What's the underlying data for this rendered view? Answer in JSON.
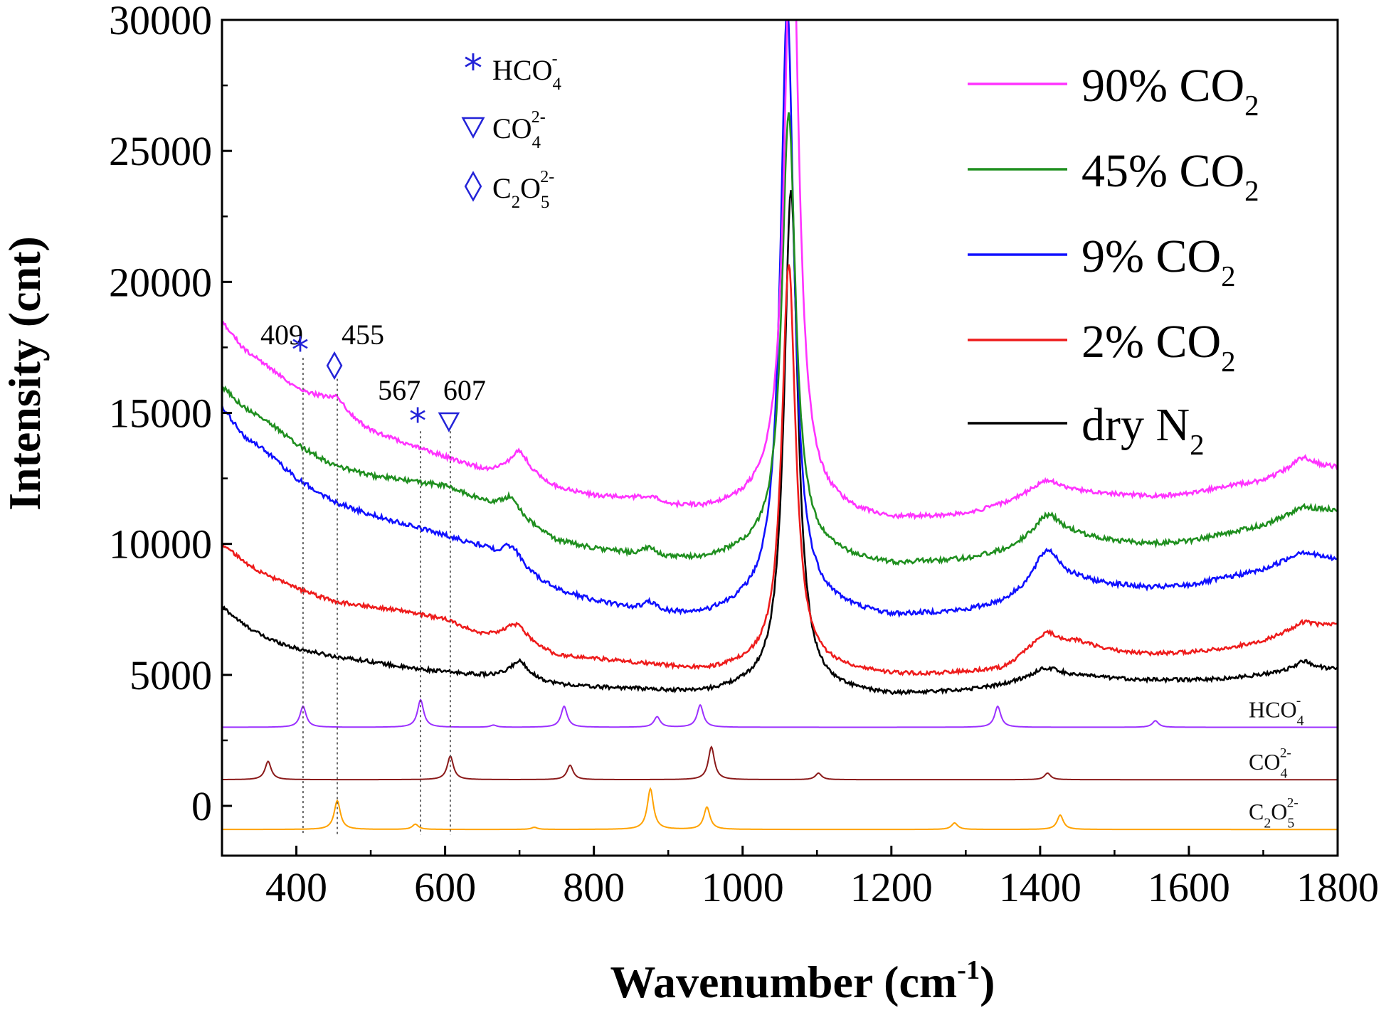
{
  "chart_data": {
    "type": "line",
    "xlabel": {
      "main": "Wavenumber (cm",
      "sup": "-1",
      "tail": ")"
    },
    "ylabel": "Intensity (cnt)",
    "xlim": [
      300,
      1800
    ],
    "ylim": [
      -1900,
      30000
    ],
    "xticks": [
      400,
      600,
      800,
      1000,
      1200,
      1400,
      1600,
      1800
    ],
    "yticks": [
      0,
      5000,
      10000,
      15000,
      20000,
      25000,
      30000
    ],
    "legend": [
      {
        "series": "90% CO2",
        "text": "90% CO",
        "sub": "2",
        "color": "#ff33ff"
      },
      {
        "series": "45% CO2",
        "text": "45% CO",
        "sub": "2",
        "color": "#1f8f1f"
      },
      {
        "series": "9% CO2",
        "text": "9% CO",
        "sub": "2",
        "color": "#1010ff"
      },
      {
        "series": "2% CO2",
        "text": "2% CO",
        "sub": "2",
        "color": "#ee1c1c"
      },
      {
        "series": "dry N2",
        "text": "dry N",
        "sub": "2",
        "color": "#000000"
      }
    ],
    "marker_legend": [
      {
        "symbol": "*",
        "shape": "asterisk",
        "text": "HCO",
        "sub": "4",
        "sup": "-"
      },
      {
        "symbol": "▽",
        "shape": "triangle",
        "text": "CO",
        "sub": "4",
        "sup": "2-"
      },
      {
        "symbol": "◊",
        "shape": "diamond",
        "text": "C",
        "sub2a": "2",
        "mid": "O",
        "sub": "5",
        "sup": "2-"
      }
    ],
    "marker_color": "#2323d8",
    "peak_annotations": [
      {
        "label": "409",
        "x": 409,
        "shape": "asterisk"
      },
      {
        "label": "455",
        "x": 455,
        "shape": "diamond"
      },
      {
        "label": "567",
        "x": 567,
        "shape": "asterisk"
      },
      {
        "label": "607",
        "x": 607,
        "shape": "triangle"
      }
    ],
    "series": [
      {
        "name": "dry N2",
        "color": "#000000",
        "baseline": [
          [
            300,
            7600
          ],
          [
            330,
            6900
          ],
          [
            360,
            6400
          ],
          [
            400,
            6000
          ],
          [
            450,
            5700
          ],
          [
            500,
            5500
          ],
          [
            550,
            5250
          ],
          [
            600,
            5100
          ],
          [
            650,
            4950
          ],
          [
            700,
            4800
          ],
          [
            750,
            4600
          ],
          [
            800,
            4500
          ],
          [
            850,
            4450
          ],
          [
            900,
            4350
          ],
          [
            950,
            4300
          ],
          [
            1000,
            4450
          ],
          [
            1050,
            4550
          ],
          [
            1100,
            4400
          ],
          [
            1150,
            4300
          ],
          [
            1200,
            4200
          ],
          [
            1250,
            4300
          ],
          [
            1300,
            4400
          ],
          [
            1350,
            4600
          ],
          [
            1400,
            4950
          ],
          [
            1450,
            4950
          ],
          [
            1500,
            4850
          ],
          [
            1550,
            4800
          ],
          [
            1600,
            4800
          ],
          [
            1650,
            4850
          ],
          [
            1700,
            5000
          ],
          [
            1750,
            5200
          ],
          [
            1800,
            5200
          ]
        ],
        "peaks": [
          {
            "x": 1065,
            "h": 19000,
            "w": 11
          },
          {
            "x": 700,
            "h": 700,
            "w": 16
          },
          {
            "x": 1410,
            "h": 300,
            "w": 20
          },
          {
            "x": 1755,
            "h": 300,
            "w": 16
          }
        ],
        "noise": 70
      },
      {
        "name": "2% CO2",
        "color": "#ee1c1c",
        "baseline": [
          [
            300,
            10000
          ],
          [
            330,
            9300
          ],
          [
            360,
            8800
          ],
          [
            400,
            8300
          ],
          [
            450,
            7800
          ],
          [
            500,
            7600
          ],
          [
            550,
            7400
          ],
          [
            600,
            7100
          ],
          [
            650,
            6500
          ],
          [
            700,
            6300
          ],
          [
            750,
            5700
          ],
          [
            800,
            5600
          ],
          [
            850,
            5450
          ],
          [
            900,
            5300
          ],
          [
            950,
            5150
          ],
          [
            1000,
            5300
          ],
          [
            1050,
            5450
          ],
          [
            1100,
            5300
          ],
          [
            1150,
            5150
          ],
          [
            1200,
            5000
          ],
          [
            1250,
            5000
          ],
          [
            1300,
            5100
          ],
          [
            1350,
            5200
          ],
          [
            1380,
            5700
          ],
          [
            1450,
            6200
          ],
          [
            1500,
            5900
          ],
          [
            1550,
            5800
          ],
          [
            1600,
            5850
          ],
          [
            1650,
            6000
          ],
          [
            1700,
            6300
          ],
          [
            1750,
            6800
          ],
          [
            1800,
            6900
          ]
        ],
        "peaks": [
          {
            "x": 1062,
            "h": 15300,
            "w": 11
          },
          {
            "x": 695,
            "h": 600,
            "w": 18
          },
          {
            "x": 1408,
            "h": 700,
            "w": 20
          },
          {
            "x": 1755,
            "h": 200,
            "w": 16
          }
        ],
        "noise": 70
      },
      {
        "name": "9% CO2",
        "color": "#1010ff",
        "baseline": [
          [
            300,
            15200
          ],
          [
            330,
            14100
          ],
          [
            360,
            13500
          ],
          [
            400,
            12500
          ],
          [
            450,
            11600
          ],
          [
            500,
            11100
          ],
          [
            550,
            10700
          ],
          [
            600,
            10300
          ],
          [
            650,
            9800
          ],
          [
            700,
            8900
          ],
          [
            750,
            8200
          ],
          [
            800,
            7800
          ],
          [
            850,
            7500
          ],
          [
            900,
            7300
          ],
          [
            950,
            7250
          ],
          [
            1000,
            7600
          ],
          [
            1050,
            7900
          ],
          [
            1100,
            7700
          ],
          [
            1150,
            7400
          ],
          [
            1200,
            7200
          ],
          [
            1250,
            7300
          ],
          [
            1300,
            7400
          ],
          [
            1350,
            7700
          ],
          [
            1400,
            8300
          ],
          [
            1450,
            8500
          ],
          [
            1500,
            8400
          ],
          [
            1550,
            8300
          ],
          [
            1600,
            8400
          ],
          [
            1650,
            8700
          ],
          [
            1700,
            9000
          ],
          [
            1750,
            9600
          ],
          [
            1800,
            9400
          ]
        ],
        "peaks": [
          {
            "x": 1060,
            "h": 22600,
            "w": 11
          },
          {
            "x": 690,
            "h": 800,
            "w": 18
          },
          {
            "x": 1410,
            "h": 1400,
            "w": 22
          },
          {
            "x": 1755,
            "h": 100,
            "w": 16
          },
          {
            "x": 876,
            "h": 300,
            "w": 12
          }
        ],
        "noise": 90
      },
      {
        "name": "45% CO2",
        "color": "#1f8f1f",
        "baseline": [
          [
            300,
            16000
          ],
          [
            330,
            15200
          ],
          [
            360,
            14700
          ],
          [
            400,
            13800
          ],
          [
            450,
            13000
          ],
          [
            500,
            12600
          ],
          [
            550,
            12400
          ],
          [
            600,
            12200
          ],
          [
            650,
            11600
          ],
          [
            700,
            10900
          ],
          [
            750,
            10100
          ],
          [
            800,
            9800
          ],
          [
            850,
            9600
          ],
          [
            900,
            9400
          ],
          [
            950,
            9400
          ],
          [
            1000,
            9700
          ],
          [
            1050,
            10000
          ],
          [
            1100,
            9700
          ],
          [
            1150,
            9400
          ],
          [
            1200,
            9200
          ],
          [
            1250,
            9300
          ],
          [
            1300,
            9400
          ],
          [
            1350,
            9700
          ],
          [
            1400,
            10300
          ],
          [
            1450,
            10300
          ],
          [
            1500,
            10100
          ],
          [
            1550,
            10000
          ],
          [
            1600,
            10100
          ],
          [
            1650,
            10400
          ],
          [
            1700,
            10700
          ],
          [
            1750,
            11300
          ],
          [
            1800,
            11300
          ]
        ],
        "peaks": [
          {
            "x": 1062,
            "h": 16500,
            "w": 11
          },
          {
            "x": 688,
            "h": 700,
            "w": 16
          },
          {
            "x": 1412,
            "h": 800,
            "w": 20
          },
          {
            "x": 1755,
            "h": 100,
            "w": 16
          },
          {
            "x": 876,
            "h": 300,
            "w": 12
          }
        ],
        "noise": 90
      },
      {
        "name": "90% CO2",
        "color": "#ff33ff",
        "baseline": [
          [
            300,
            18500
          ],
          [
            330,
            17400
          ],
          [
            360,
            16800
          ],
          [
            400,
            15900
          ],
          [
            440,
            15500
          ],
          [
            470,
            14900
          ],
          [
            500,
            14300
          ],
          [
            550,
            13800
          ],
          [
            600,
            13300
          ],
          [
            650,
            12800
          ],
          [
            700,
            12700
          ],
          [
            750,
            12100
          ],
          [
            800,
            11800
          ],
          [
            850,
            11700
          ],
          [
            900,
            11400
          ],
          [
            950,
            11300
          ],
          [
            1000,
            11500
          ],
          [
            1050,
            11800
          ],
          [
            1100,
            11500
          ],
          [
            1150,
            11100
          ],
          [
            1200,
            10900
          ],
          [
            1250,
            11000
          ],
          [
            1300,
            11100
          ],
          [
            1350,
            11500
          ],
          [
            1400,
            12100
          ],
          [
            1450,
            12000
          ],
          [
            1500,
            11900
          ],
          [
            1550,
            11800
          ],
          [
            1600,
            11900
          ],
          [
            1650,
            12200
          ],
          [
            1700,
            12400
          ],
          [
            1750,
            13000
          ],
          [
            1800,
            12900
          ]
        ],
        "peaks": [
          {
            "x": 1066,
            "h": 24000,
            "w": 11
          },
          {
            "x": 700,
            "h": 800,
            "w": 16
          },
          {
            "x": 455,
            "h": 400,
            "w": 12
          },
          {
            "x": 1412,
            "h": 300,
            "w": 18
          },
          {
            "x": 1755,
            "h": 300,
            "w": 16
          },
          {
            "x": 876,
            "h": 200,
            "w": 14
          }
        ],
        "noise": 80
      }
    ],
    "references": [
      {
        "name": "HCO4-",
        "label": {
          "text": "HCO",
          "sub": "4",
          "sup": "-"
        },
        "color": "#9b30ff",
        "offset": 3000,
        "peaks": [
          {
            "x": 409,
            "h": 800
          },
          {
            "x": 567,
            "h": 1050
          },
          {
            "x": 760,
            "h": 800
          },
          {
            "x": 885,
            "h": 400
          },
          {
            "x": 943,
            "h": 850
          },
          {
            "x": 1343,
            "h": 800
          },
          {
            "x": 1555,
            "h": 250
          },
          {
            "x": 665,
            "h": 80
          }
        ]
      },
      {
        "name": "CO42-",
        "label": {
          "text": "CO",
          "sub": "4",
          "sup": "2-"
        },
        "color": "#8b1a1a",
        "offset": 1000,
        "peaks": [
          {
            "x": 362,
            "h": 700
          },
          {
            "x": 607,
            "h": 900
          },
          {
            "x": 768,
            "h": 550
          },
          {
            "x": 958,
            "h": 1250
          },
          {
            "x": 1102,
            "h": 250
          },
          {
            "x": 1410,
            "h": 250
          }
        ]
      },
      {
        "name": "C2O52-",
        "label": {
          "text": "C",
          "sub2a": "2",
          "mid": "O",
          "sub": "5",
          "sup": "2-"
        },
        "color": "#ffa200",
        "offset": -900,
        "peaks": [
          {
            "x": 455,
            "h": 1100
          },
          {
            "x": 560,
            "h": 200
          },
          {
            "x": 720,
            "h": 80
          },
          {
            "x": 876,
            "h": 1550
          },
          {
            "x": 952,
            "h": 850
          },
          {
            "x": 1285,
            "h": 250
          },
          {
            "x": 1427,
            "h": 550
          }
        ]
      }
    ]
  }
}
